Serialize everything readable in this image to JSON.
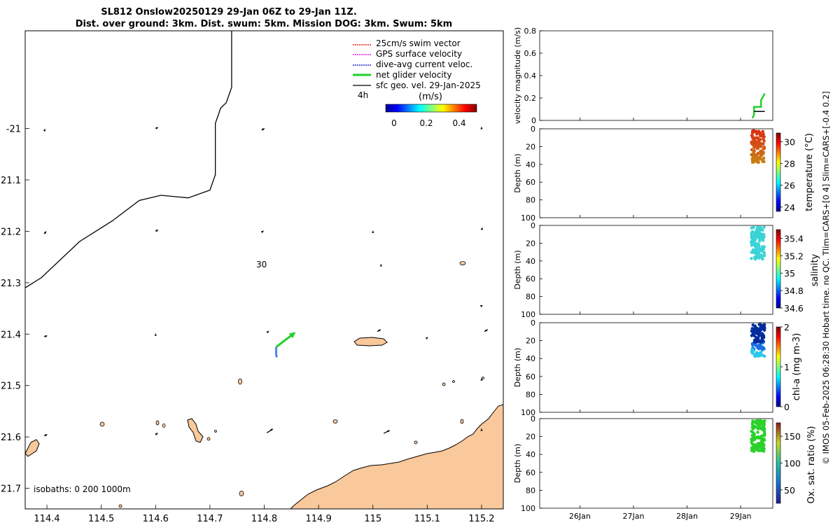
{
  "title": {
    "line1": "SL812 Onslow20250129 29-Jan 06Z to 29-Jan 11Z.",
    "line2": "Dist. over ground: 3km. Dist. swum: 5km. Mission DOG: 3km. Swum: 5km"
  },
  "side_caption": "© IMOS 05-Feb-2025 06:28:30 Hobart time. no QC. Tlim=CARS+[0 4] Slim=CARS+[-0.4 0.2]",
  "colors": {
    "land": "#f9c89b",
    "coast": "#000000",
    "isobath": "#000000",
    "swim_vector": "#e8221d",
    "gps_velocity": "#e020e0",
    "dive_avg": "#1f2fd8",
    "net_glider": "#22d02a",
    "sfc_geo": "#000000",
    "temp_dots": "#d9480f",
    "sal_dots": "#3ad3d6",
    "chl_dots_high": "#002c9c",
    "chl_dots_low": "#2ac8e8",
    "oxy_dots": "#2bd12b"
  },
  "chart_data": [
    {
      "type": "map",
      "name": "glider track map",
      "xlim": [
        114.36,
        115.24
      ],
      "ylim": [
        -21.74,
        -20.81
      ],
      "x_ticks": [
        114.4,
        114.5,
        114.6,
        114.7,
        114.8,
        114.9,
        115,
        115.1,
        115.2
      ],
      "x_tick_labels": [
        "114.4",
        "114.5",
        "114.6",
        "114.7",
        "114.8",
        "114.9",
        "115",
        "115.1",
        "115.2"
      ],
      "y_ticks": [
        -21,
        -21.1,
        -21.2,
        -21.3,
        -21.4,
        -21.5,
        -21.6,
        -21.7
      ],
      "y_tick_labels": [
        "-21",
        "21.1",
        "21.2",
        "21.3",
        "21.4",
        "21.5",
        "21.6",
        "21.7"
      ],
      "isobath_30_label": "30",
      "isobaths_text": "isobaths: 0   200  1000m",
      "time_label": "4h",
      "glider_track": {
        "lon": [
          114.822,
          114.822,
          114.822,
          114.823
        ],
        "lat": [
          -21.425,
          -21.433,
          -21.44,
          -21.445
        ]
      },
      "net_glider_velocity": {
        "from": [
          114.822,
          -21.425
        ],
        "to": [
          114.858,
          -21.396
        ]
      },
      "isobath_30m": {
        "lon": [
          114.36,
          114.39,
          114.46,
          114.52,
          114.57,
          114.61,
          114.66,
          114.7,
          114.71,
          114.71,
          114.72,
          114.73,
          114.74,
          114.74
        ],
        "lat": [
          -21.31,
          -21.29,
          -21.22,
          -21.18,
          -21.14,
          -21.13,
          -21.135,
          -21.12,
          -21.09,
          -20.99,
          -20.96,
          -20.95,
          -20.92,
          -20.81
        ]
      },
      "sfc_geo_vectors": [
        {
          "lon": 114.395,
          "lat": -21.005,
          "u": 0.02,
          "v": 0.04
        },
        {
          "lon": 114.6,
          "lat": -21.0,
          "u": 0.05,
          "v": 0.02
        },
        {
          "lon": 114.795,
          "lat": -21.003,
          "u": 0.06,
          "v": 0.03
        },
        {
          "lon": 115.2,
          "lat": -20.998,
          "u": 0.0,
          "v": 0.01
        },
        {
          "lon": 114.395,
          "lat": -21.205,
          "u": 0.04,
          "v": 0.05
        },
        {
          "lon": 114.6,
          "lat": -21.2,
          "u": 0.05,
          "v": 0.03
        },
        {
          "lon": 114.795,
          "lat": -21.202,
          "u": 0.04,
          "v": 0.03
        },
        {
          "lon": 115.0,
          "lat": -21.2,
          "u": 0.0,
          "v": 0.01
        },
        {
          "lon": 115.2,
          "lat": -21.197,
          "u": 0.02,
          "v": 0.04
        },
        {
          "lon": 115.015,
          "lat": -21.265,
          "u": 0.0,
          "v": 0.01
        },
        {
          "lon": 115.2,
          "lat": -21.345,
          "u": 0.02,
          "v": 0.01
        },
        {
          "lon": 114.395,
          "lat": -21.405,
          "u": 0.06,
          "v": 0.02
        },
        {
          "lon": 114.6,
          "lat": -21.4,
          "u": 0.0,
          "v": 0.01
        },
        {
          "lon": 114.805,
          "lat": -21.397,
          "u": 0.04,
          "v": 0.03
        },
        {
          "lon": 115.008,
          "lat": -21.395,
          "u": 0.07,
          "v": 0.04
        },
        {
          "lon": 115.1,
          "lat": -21.407,
          "u": 0.01,
          "v": 0.01
        },
        {
          "lon": 115.205,
          "lat": -21.395,
          "u": 0.07,
          "v": 0.04
        },
        {
          "lon": 115.2,
          "lat": -21.487,
          "u": 0.0,
          "v": 0.01
        },
        {
          "lon": 114.395,
          "lat": -21.598,
          "u": 0.06,
          "v": 0.03
        },
        {
          "lon": 114.6,
          "lat": -21.596,
          "u": 0.04,
          "v": 0.04
        },
        {
          "lon": 114.805,
          "lat": -21.592,
          "u": 0.12,
          "v": 0.08
        },
        {
          "lon": 115.02,
          "lat": -21.593,
          "u": 0.12,
          "v": 0.06
        },
        {
          "lon": 115.2,
          "lat": -21.585,
          "u": 0.0,
          "v": 0.01
        }
      ]
    },
    {
      "type": "line",
      "name": "velocity magnitude",
      "ylabel": "velocity magnitude (m/s)",
      "ylim": [
        0,
        0.8
      ],
      "y_ticks": [
        0,
        0.2,
        0.4,
        0.6,
        0.8
      ],
      "y_tick_labels": [
        "0",
        "0.2",
        "0.4",
        "0.6",
        "0.8"
      ],
      "series": [
        {
          "name": "net glider velocity",
          "x": [
            29.22,
            29.25,
            29.25,
            29.38,
            29.38,
            29.45
          ],
          "y": [
            0.02,
            0.05,
            0.12,
            0.12,
            0.18,
            0.24
          ]
        },
        {
          "name": "dive-avg current veloc.",
          "x": [
            29.25,
            29.45
          ],
          "y": [
            0.08,
            0.08
          ]
        }
      ]
    },
    {
      "type": "scatter",
      "name": "temperature",
      "ylabel": "Depth (m)",
      "clabel": "temperature (°C)",
      "ylim": [
        0,
        100
      ],
      "y_ticks": [
        0,
        20,
        40,
        60,
        80,
        100
      ],
      "y_tick_labels": [
        "0",
        "20",
        "40",
        "60",
        "80",
        "100"
      ],
      "clim": [
        23.6,
        30.8
      ],
      "c_ticks": [
        24,
        26,
        28,
        30
      ],
      "c_tick_labels": [
        "24",
        "26",
        "28",
        "30"
      ],
      "profile_x_range": [
        29.2,
        29.45
      ],
      "depth_range": [
        2,
        38
      ]
    },
    {
      "type": "scatter",
      "name": "salinity",
      "ylabel": "Depth (m)",
      "clabel": "salinity",
      "ylim": [
        0,
        100
      ],
      "y_ticks": [
        0,
        20,
        40,
        60,
        80,
        100
      ],
      "y_tick_labels": [
        "0",
        "20",
        "40",
        "60",
        "80",
        "100"
      ],
      "clim": [
        34.6,
        35.5
      ],
      "c_ticks": [
        34.6,
        34.8,
        35,
        35.2,
        35.4
      ],
      "c_tick_labels": [
        "34.6",
        "34.8",
        "35",
        "35.2",
        "35.4"
      ],
      "profile_x_range": [
        29.2,
        29.45
      ],
      "depth_range": [
        2,
        38
      ]
    },
    {
      "type": "scatter",
      "name": "chl-a",
      "ylabel": "Depth (m)",
      "clabel": "chl-a (mg m-3)",
      "ylim": [
        0,
        100
      ],
      "y_ticks": [
        0,
        20,
        40,
        60,
        80,
        100
      ],
      "y_tick_labels": [
        "0",
        "20",
        "40",
        "60",
        "80",
        "100"
      ],
      "clim": [
        0,
        2
      ],
      "c_ticks": [
        0,
        1,
        2
      ],
      "c_tick_labels": [
        "0",
        "1",
        "2"
      ],
      "profile_x_range": [
        29.2,
        29.45
      ],
      "depth_range": [
        2,
        38
      ]
    },
    {
      "type": "scatter",
      "name": "oxygen saturation",
      "ylabel": "Depth (m)",
      "clabel": "Ox. sat. ratio (%)",
      "ylim": [
        0,
        100
      ],
      "y_ticks": [
        0,
        20,
        40,
        60,
        80,
        100
      ],
      "y_tick_labels": [
        "0",
        "20",
        "40",
        "60",
        "80",
        "100"
      ],
      "clim": [
        25,
        175
      ],
      "c_ticks": [
        50,
        100,
        150
      ],
      "c_tick_labels": [
        "50",
        "100",
        "150"
      ],
      "x_ticks": [
        26,
        27,
        28,
        29
      ],
      "x_tick_labels": [
        "26Jan",
        "27Jan",
        "28Jan",
        "29Jan"
      ],
      "xlim": [
        25.25,
        29.6
      ],
      "profile_x_range": [
        29.2,
        29.45
      ],
      "depth_range": [
        2,
        38
      ]
    }
  ],
  "legend": {
    "items": [
      "25cm/s swim vector",
      "GPS surface velocity",
      "dive-avg current veloc.",
      "net glider velocity",
      "sfc geo. vel. 29-Jan-2025"
    ],
    "colorbar_title": "(m/s)",
    "colorbar_ticks": [
      "0",
      "0.2",
      "0.4"
    ]
  }
}
